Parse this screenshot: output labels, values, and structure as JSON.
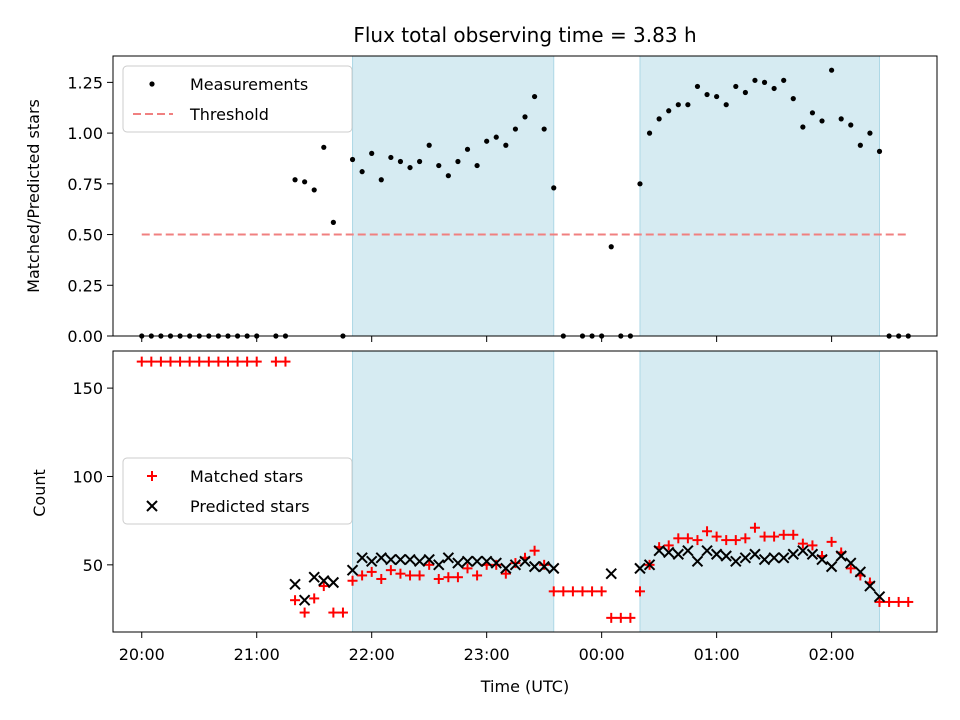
{
  "chart_data": [
    {
      "type": "scatter",
      "title": "Flux total observing time = 3.83 h",
      "xlabel": "",
      "ylabel": "Matched/Predicted stars",
      "ylim": [
        0,
        1.38
      ],
      "yticks": [
        "0.00",
        "0.25",
        "0.50",
        "0.75",
        "1.00",
        "1.25"
      ],
      "ytick_values": [
        0,
        0.25,
        0.5,
        0.75,
        1.0,
        1.25
      ],
      "legend": {
        "placement": "upper-left",
        "entries": [
          {
            "label": "Measurements",
            "marker": "dot",
            "color": "#000000"
          },
          {
            "label": "Threshold",
            "marker": "dashed-line",
            "color": "#f08080"
          }
        ]
      },
      "threshold": {
        "y": 0.5,
        "x_start": "20:00",
        "x_end": "02:40",
        "color": "#f08080"
      },
      "shaded_regions": [
        {
          "start": "21:50",
          "end": "23:35",
          "color": "#add8e6"
        },
        {
          "start": "00:20",
          "end": "02:25",
          "color": "#add8e6"
        }
      ],
      "series": [
        {
          "name": "Measurements",
          "color": "#000000",
          "points": [
            [
              "20:00",
              0
            ],
            [
              "20:05",
              0
            ],
            [
              "20:10",
              0
            ],
            [
              "20:15",
              0
            ],
            [
              "20:20",
              0
            ],
            [
              "20:25",
              0
            ],
            [
              "20:30",
              0
            ],
            [
              "20:35",
              0
            ],
            [
              "20:40",
              0
            ],
            [
              "20:45",
              0
            ],
            [
              "20:50",
              0
            ],
            [
              "20:55",
              0
            ],
            [
              "21:00",
              0
            ],
            [
              "21:10",
              0
            ],
            [
              "21:15",
              0
            ],
            [
              "21:20",
              0.77
            ],
            [
              "21:25",
              0.76
            ],
            [
              "21:30",
              0.72
            ],
            [
              "21:35",
              0.93
            ],
            [
              "21:40",
              0.56
            ],
            [
              "21:45",
              0
            ],
            [
              "21:50",
              0.87
            ],
            [
              "21:55",
              0.81
            ],
            [
              "22:00",
              0.9
            ],
            [
              "22:05",
              0.77
            ],
            [
              "22:10",
              0.88
            ],
            [
              "22:15",
              0.86
            ],
            [
              "22:20",
              0.83
            ],
            [
              "22:25",
              0.86
            ],
            [
              "22:30",
              0.94
            ],
            [
              "22:35",
              0.84
            ],
            [
              "22:40",
              0.79
            ],
            [
              "22:45",
              0.86
            ],
            [
              "22:50",
              0.92
            ],
            [
              "22:55",
              0.84
            ],
            [
              "23:00",
              0.96
            ],
            [
              "23:05",
              0.98
            ],
            [
              "23:10",
              0.94
            ],
            [
              "23:15",
              1.02
            ],
            [
              "23:20",
              1.08
            ],
            [
              "23:25",
              1.18
            ],
            [
              "23:30",
              1.02
            ],
            [
              "23:35",
              0.73
            ],
            [
              "23:40",
              0
            ],
            [
              "23:50",
              0
            ],
            [
              "23:55",
              0
            ],
            [
              "00:00",
              0
            ],
            [
              "00:05",
              0.44
            ],
            [
              "00:10",
              0
            ],
            [
              "00:15",
              0
            ],
            [
              "00:20",
              0.75
            ],
            [
              "00:25",
              1.0
            ],
            [
              "00:30",
              1.07
            ],
            [
              "00:35",
              1.11
            ],
            [
              "00:40",
              1.14
            ],
            [
              "00:45",
              1.14
            ],
            [
              "00:50",
              1.23
            ],
            [
              "00:55",
              1.19
            ],
            [
              "01:00",
              1.18
            ],
            [
              "01:05",
              1.14
            ],
            [
              "01:10",
              1.23
            ],
            [
              "01:15",
              1.2
            ],
            [
              "01:20",
              1.26
            ],
            [
              "01:25",
              1.25
            ],
            [
              "01:30",
              1.22
            ],
            [
              "01:35",
              1.26
            ],
            [
              "01:40",
              1.17
            ],
            [
              "01:45",
              1.03
            ],
            [
              "01:50",
              1.1
            ],
            [
              "01:55",
              1.06
            ],
            [
              "02:00",
              1.31
            ],
            [
              "02:05",
              1.07
            ],
            [
              "02:10",
              1.04
            ],
            [
              "02:15",
              0.94
            ],
            [
              "02:20",
              1.0
            ],
            [
              "02:25",
              0.91
            ],
            [
              "02:30",
              0
            ],
            [
              "02:35",
              0
            ],
            [
              "02:40",
              0
            ]
          ]
        }
      ]
    },
    {
      "type": "scatter",
      "title": "",
      "xlabel": "Time (UTC)",
      "ylabel": "Count",
      "ylim": [
        12,
        171
      ],
      "yticks": [
        "50",
        "100",
        "150"
      ],
      "ytick_values": [
        50,
        100,
        150
      ],
      "xticks": [
        "20:00",
        "21:00",
        "22:00",
        "23:00",
        "00:00",
        "01:00",
        "02:00"
      ],
      "xlim": [
        "19:45",
        "02:55"
      ],
      "legend": {
        "placement": "center-left",
        "entries": [
          {
            "label": "Matched stars",
            "marker": "plus",
            "color": "#ff0000"
          },
          {
            "label": "Predicted stars",
            "marker": "x",
            "color": "#000000"
          }
        ]
      },
      "shaded_regions": [
        {
          "start": "21:50",
          "end": "23:35",
          "color": "#add8e6"
        },
        {
          "start": "00:20",
          "end": "02:25",
          "color": "#add8e6"
        }
      ],
      "series": [
        {
          "name": "Matched stars",
          "marker": "plus",
          "color": "#ff0000",
          "points": [
            [
              "20:00",
              165
            ],
            [
              "20:05",
              165
            ],
            [
              "20:10",
              165
            ],
            [
              "20:15",
              165
            ],
            [
              "20:20",
              165
            ],
            [
              "20:25",
              165
            ],
            [
              "20:30",
              165
            ],
            [
              "20:35",
              165
            ],
            [
              "20:40",
              165
            ],
            [
              "20:45",
              165
            ],
            [
              "20:50",
              165
            ],
            [
              "20:55",
              165
            ],
            [
              "21:00",
              165
            ],
            [
              "21:10",
              165
            ],
            [
              "21:15",
              165
            ],
            [
              "21:20",
              30
            ],
            [
              "21:25",
              23
            ],
            [
              "21:30",
              31
            ],
            [
              "21:35",
              38
            ],
            [
              "21:40",
              23
            ],
            [
              "21:45",
              23
            ],
            [
              "21:50",
              41
            ],
            [
              "21:55",
              44
            ],
            [
              "22:00",
              46
            ],
            [
              "22:05",
              42
            ],
            [
              "22:10",
              47
            ],
            [
              "22:15",
              45
            ],
            [
              "22:20",
              44
            ],
            [
              "22:25",
              44
            ],
            [
              "22:30",
              50
            ],
            [
              "22:35",
              42
            ],
            [
              "22:40",
              43
            ],
            [
              "22:45",
              43
            ],
            [
              "22:50",
              48
            ],
            [
              "22:55",
              44
            ],
            [
              "23:00",
              50
            ],
            [
              "23:05",
              50
            ],
            [
              "23:10",
              45
            ],
            [
              "23:15",
              51
            ],
            [
              "23:20",
              54
            ],
            [
              "23:25",
              58
            ],
            [
              "23:30",
              50
            ],
            [
              "23:35",
              35
            ],
            [
              "23:40",
              35
            ],
            [
              "23:45",
              35
            ],
            [
              "23:50",
              35
            ],
            [
              "23:55",
              35
            ],
            [
              "00:00",
              35
            ],
            [
              "00:05",
              20
            ],
            [
              "00:10",
              20
            ],
            [
              "00:15",
              20
            ],
            [
              "00:20",
              35
            ],
            [
              "00:25",
              50
            ],
            [
              "00:30",
              60
            ],
            [
              "00:35",
              61
            ],
            [
              "00:40",
              65
            ],
            [
              "00:45",
              65
            ],
            [
              "00:50",
              64
            ],
            [
              "00:55",
              69
            ],
            [
              "01:00",
              66
            ],
            [
              "01:05",
              64
            ],
            [
              "01:10",
              64
            ],
            [
              "01:15",
              65
            ],
            [
              "01:20",
              71
            ],
            [
              "01:25",
              66
            ],
            [
              "01:30",
              66
            ],
            [
              "01:35",
              67
            ],
            [
              "01:40",
              67
            ],
            [
              "01:45",
              62
            ],
            [
              "01:50",
              61
            ],
            [
              "01:55",
              55
            ],
            [
              "02:00",
              63
            ],
            [
              "02:05",
              57
            ],
            [
              "02:10",
              48
            ],
            [
              "02:15",
              44
            ],
            [
              "02:20",
              40
            ],
            [
              "02:25",
              29
            ],
            [
              "02:30",
              29
            ],
            [
              "02:35",
              29
            ],
            [
              "02:40",
              29
            ]
          ]
        },
        {
          "name": "Predicted stars",
          "marker": "x",
          "color": "#000000",
          "points": [
            [
              "21:20",
              39
            ],
            [
              "21:25",
              30
            ],
            [
              "21:30",
              43
            ],
            [
              "21:35",
              41
            ],
            [
              "21:40",
              40
            ],
            [
              "21:50",
              47
            ],
            [
              "21:55",
              54
            ],
            [
              "22:00",
              52
            ],
            [
              "22:05",
              54
            ],
            [
              "22:10",
              53
            ],
            [
              "22:15",
              53
            ],
            [
              "22:20",
              53
            ],
            [
              "22:25",
              52
            ],
            [
              "22:30",
              53
            ],
            [
              "22:35",
              50
            ],
            [
              "22:40",
              54
            ],
            [
              "22:45",
              51
            ],
            [
              "22:50",
              52
            ],
            [
              "22:55",
              52
            ],
            [
              "23:00",
              52
            ],
            [
              "23:05",
              51
            ],
            [
              "23:10",
              48
            ],
            [
              "23:15",
              50
            ],
            [
              "23:20",
              52
            ],
            [
              "23:25",
              49
            ],
            [
              "23:30",
              49
            ],
            [
              "23:35",
              48
            ],
            [
              "00:05",
              45
            ],
            [
              "00:20",
              48
            ],
            [
              "00:25",
              50
            ],
            [
              "00:30",
              58
            ],
            [
              "00:35",
              57
            ],
            [
              "00:40",
              56
            ],
            [
              "00:45",
              58
            ],
            [
              "00:50",
              52
            ],
            [
              "00:55",
              58
            ],
            [
              "01:00",
              56
            ],
            [
              "01:05",
              55
            ],
            [
              "01:10",
              52
            ],
            [
              "01:15",
              54
            ],
            [
              "01:20",
              56
            ],
            [
              "01:25",
              53
            ],
            [
              "01:30",
              54
            ],
            [
              "01:35",
              54
            ],
            [
              "01:40",
              56
            ],
            [
              "01:45",
              58
            ],
            [
              "01:50",
              56
            ],
            [
              "01:55",
              53
            ],
            [
              "02:00",
              49
            ],
            [
              "02:05",
              55
            ],
            [
              "02:10",
              51
            ],
            [
              "02:15",
              46
            ],
            [
              "02:20",
              38
            ],
            [
              "02:25",
              32
            ]
          ]
        }
      ]
    }
  ]
}
